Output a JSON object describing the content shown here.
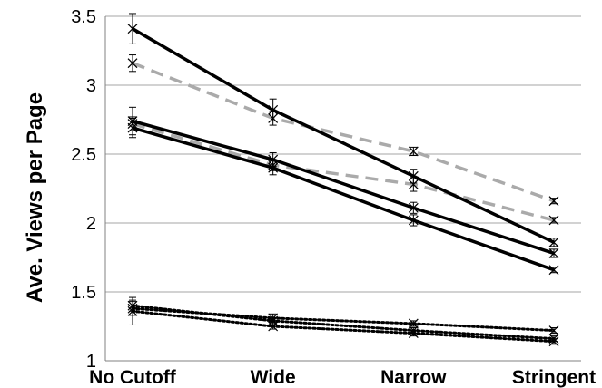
{
  "chart_data": {
    "type": "line",
    "title": "",
    "xlabel": "",
    "ylabel": "Ave. Views per Page",
    "categories": [
      "No Cutoff",
      "Wide",
      "Narrow",
      "Stringent"
    ],
    "ylim": [
      1,
      3.5
    ],
    "yticks": [
      "1",
      "1.5",
      "2",
      "2.5",
      "3",
      "3.5"
    ],
    "grid": true,
    "legend": "none",
    "series": [
      {
        "style": "solid",
        "color": "#000000",
        "values": [
          3.41,
          2.82,
          2.34,
          1.86
        ],
        "errors": [
          0.11,
          0.08,
          0.05,
          0.03
        ]
      },
      {
        "style": "solid",
        "color": "#000000",
        "values": [
          2.74,
          2.46,
          2.11,
          1.78
        ],
        "errors": [
          0.1,
          0.05,
          0.04,
          0.03
        ]
      },
      {
        "style": "solid",
        "color": "#000000",
        "values": [
          2.69,
          2.4,
          2.02,
          1.66
        ],
        "errors": [
          0.07,
          0.05,
          0.04,
          0.02
        ]
      },
      {
        "style": "dashed",
        "color": "#aaaaaa",
        "values": [
          3.16,
          2.76,
          2.52,
          2.16
        ],
        "errors": [
          0.06,
          0.05,
          0.03,
          0.02
        ]
      },
      {
        "style": "dashed",
        "color": "#aaaaaa",
        "values": [
          2.72,
          2.42,
          2.28,
          2.02
        ],
        "errors": [
          0.05,
          0.04,
          0.05,
          0.02
        ]
      },
      {
        "style": "dotted",
        "color": "#000000",
        "values": [
          1.38,
          1.31,
          1.27,
          1.22
        ],
        "errors": [
          0.05,
          0.03,
          0.02,
          0.02
        ]
      },
      {
        "style": "dotted",
        "color": "#000000",
        "values": [
          1.4,
          1.29,
          1.22,
          1.16
        ],
        "errors": [
          0.04,
          0.02,
          0.02,
          0.02
        ]
      },
      {
        "style": "dotted",
        "color": "#000000",
        "values": [
          1.36,
          1.25,
          1.2,
          1.14
        ],
        "errors": [
          0.1,
          0.02,
          0.02,
          0.02
        ]
      }
    ]
  }
}
